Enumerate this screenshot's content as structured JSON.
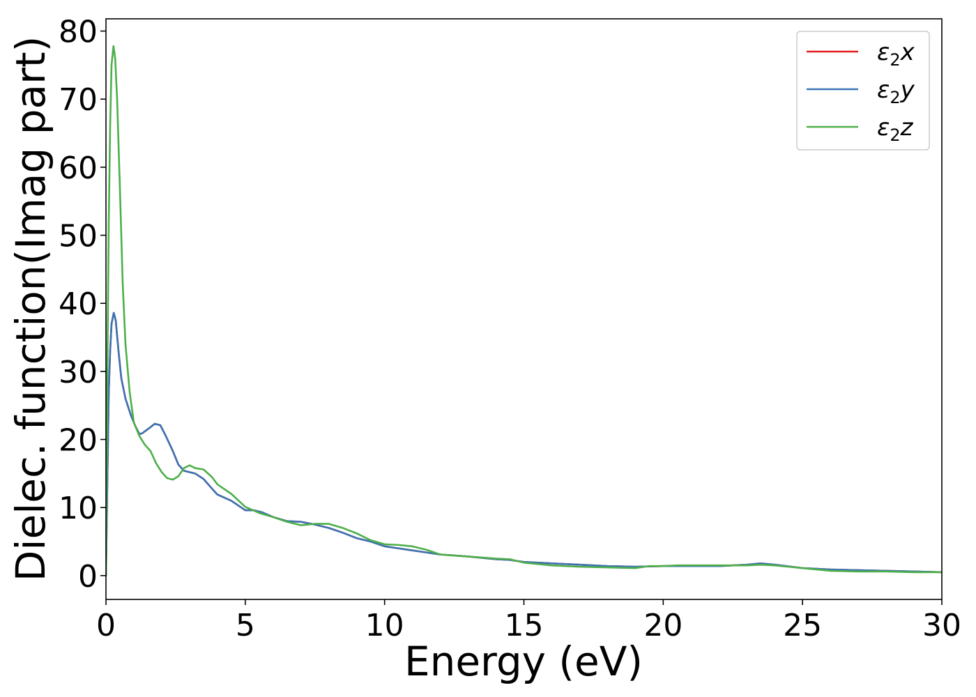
{
  "chart_data": {
    "type": "line",
    "xlabel": "Energy (eV)",
    "ylabel": "Dielec. function(Imag part)",
    "xlim": [
      0,
      30
    ],
    "ylim": [
      -3.5,
      81.8
    ],
    "xticks": [
      0,
      5,
      10,
      15,
      20,
      25,
      30
    ],
    "yticks": [
      0,
      10,
      20,
      30,
      40,
      50,
      60,
      70,
      80
    ],
    "grid": false,
    "legend_position": "top-right",
    "series": [
      {
        "name": "ε₂x",
        "legend_base": "ε",
        "legend_sub": "2",
        "legend_suffix": "x",
        "color": "#e41a1c",
        "points": [
          [
            0,
            0
          ],
          [
            0.05,
            14
          ],
          [
            0.1,
            27
          ],
          [
            0.15,
            33
          ],
          [
            0.2,
            37
          ],
          [
            0.28,
            38.6
          ],
          [
            0.35,
            37.5
          ],
          [
            0.45,
            33
          ],
          [
            0.55,
            29
          ],
          [
            0.7,
            26
          ],
          [
            0.9,
            23.5
          ],
          [
            1.05,
            22
          ],
          [
            1.2,
            20.8
          ],
          [
            1.3,
            20.9
          ],
          [
            1.5,
            21.5
          ],
          [
            1.75,
            22.3
          ],
          [
            1.95,
            22.1
          ],
          [
            2.15,
            20.5
          ],
          [
            2.4,
            18.3
          ],
          [
            2.6,
            16.3
          ],
          [
            2.8,
            15.4
          ],
          [
            3.2,
            15.0
          ],
          [
            3.5,
            14.2
          ],
          [
            3.8,
            12.8
          ],
          [
            4.0,
            11.9
          ],
          [
            4.5,
            11.0
          ],
          [
            5.0,
            9.6
          ],
          [
            5.3,
            9.6
          ],
          [
            5.6,
            9.3
          ],
          [
            6.0,
            8.6
          ],
          [
            6.5,
            8.0
          ],
          [
            7.0,
            7.9
          ],
          [
            7.5,
            7.5
          ],
          [
            8.0,
            7.0
          ],
          [
            8.5,
            6.3
          ],
          [
            9.0,
            5.5
          ],
          [
            9.5,
            5.0
          ],
          [
            10.0,
            4.3
          ],
          [
            10.5,
            4.0
          ],
          [
            11.0,
            3.7
          ],
          [
            11.5,
            3.4
          ],
          [
            12.0,
            3.1
          ],
          [
            13.0,
            2.8
          ],
          [
            14.0,
            2.4
          ],
          [
            14.5,
            2.3
          ],
          [
            15.0,
            2.0
          ],
          [
            16.0,
            1.8
          ],
          [
            17.0,
            1.6
          ],
          [
            18.0,
            1.4
          ],
          [
            19.0,
            1.3
          ],
          [
            20.0,
            1.4
          ],
          [
            21.0,
            1.4
          ],
          [
            22.0,
            1.4
          ],
          [
            23.0,
            1.6
          ],
          [
            23.5,
            1.8
          ],
          [
            24.0,
            1.6
          ],
          [
            25.0,
            1.1
          ],
          [
            26.0,
            0.9
          ],
          [
            27.0,
            0.8
          ],
          [
            28.0,
            0.7
          ],
          [
            29.0,
            0.6
          ],
          [
            30.0,
            0.5
          ]
        ]
      },
      {
        "name": "ε₂y",
        "legend_base": "ε",
        "legend_sub": "2",
        "legend_suffix": "y",
        "color": "#3a74b5",
        "points": [
          [
            0,
            0
          ],
          [
            0.05,
            14
          ],
          [
            0.1,
            27
          ],
          [
            0.15,
            33
          ],
          [
            0.2,
            37
          ],
          [
            0.28,
            38.6
          ],
          [
            0.35,
            37.5
          ],
          [
            0.45,
            33
          ],
          [
            0.55,
            29
          ],
          [
            0.7,
            26
          ],
          [
            0.9,
            23.5
          ],
          [
            1.05,
            22
          ],
          [
            1.2,
            20.8
          ],
          [
            1.3,
            20.9
          ],
          [
            1.5,
            21.5
          ],
          [
            1.75,
            22.3
          ],
          [
            1.95,
            22.1
          ],
          [
            2.15,
            20.5
          ],
          [
            2.4,
            18.3
          ],
          [
            2.6,
            16.3
          ],
          [
            2.8,
            15.4
          ],
          [
            3.2,
            15.0
          ],
          [
            3.5,
            14.2
          ],
          [
            3.8,
            12.8
          ],
          [
            4.0,
            11.9
          ],
          [
            4.5,
            11.0
          ],
          [
            5.0,
            9.6
          ],
          [
            5.3,
            9.6
          ],
          [
            5.6,
            9.3
          ],
          [
            6.0,
            8.6
          ],
          [
            6.5,
            8.0
          ],
          [
            7.0,
            7.9
          ],
          [
            7.5,
            7.5
          ],
          [
            8.0,
            7.0
          ],
          [
            8.5,
            6.3
          ],
          [
            9.0,
            5.5
          ],
          [
            9.5,
            5.0
          ],
          [
            10.0,
            4.3
          ],
          [
            10.5,
            4.0
          ],
          [
            11.0,
            3.7
          ],
          [
            11.5,
            3.4
          ],
          [
            12.0,
            3.1
          ],
          [
            13.0,
            2.8
          ],
          [
            14.0,
            2.4
          ],
          [
            14.5,
            2.3
          ],
          [
            15.0,
            2.0
          ],
          [
            16.0,
            1.8
          ],
          [
            17.0,
            1.6
          ],
          [
            18.0,
            1.4
          ],
          [
            19.0,
            1.3
          ],
          [
            20.0,
            1.4
          ],
          [
            21.0,
            1.4
          ],
          [
            22.0,
            1.4
          ],
          [
            23.0,
            1.6
          ],
          [
            23.5,
            1.8
          ],
          [
            24.0,
            1.6
          ],
          [
            25.0,
            1.1
          ],
          [
            26.0,
            0.9
          ],
          [
            27.0,
            0.8
          ],
          [
            28.0,
            0.7
          ],
          [
            29.0,
            0.6
          ],
          [
            30.0,
            0.5
          ]
        ]
      },
      {
        "name": "ε₂z",
        "legend_base": "ε",
        "legend_sub": "2",
        "legend_suffix": "z",
        "color": "#4daf4a",
        "points": [
          [
            0,
            0
          ],
          [
            0.05,
            30
          ],
          [
            0.1,
            52
          ],
          [
            0.15,
            66
          ],
          [
            0.2,
            75
          ],
          [
            0.27,
            77.8
          ],
          [
            0.33,
            76
          ],
          [
            0.4,
            70
          ],
          [
            0.5,
            57
          ],
          [
            0.6,
            43
          ],
          [
            0.7,
            34
          ],
          [
            0.85,
            27
          ],
          [
            1.0,
            22.5
          ],
          [
            1.2,
            20.5
          ],
          [
            1.4,
            19.2
          ],
          [
            1.6,
            18.3
          ],
          [
            1.8,
            16.5
          ],
          [
            2.0,
            15.2
          ],
          [
            2.2,
            14.3
          ],
          [
            2.4,
            14.1
          ],
          [
            2.6,
            14.6
          ],
          [
            2.8,
            15.8
          ],
          [
            3.0,
            16.2
          ],
          [
            3.2,
            15.8
          ],
          [
            3.5,
            15.6
          ],
          [
            3.8,
            14.5
          ],
          [
            4.0,
            13.4
          ],
          [
            4.5,
            12.0
          ],
          [
            5.0,
            10.1
          ],
          [
            5.5,
            9.2
          ],
          [
            6.0,
            8.6
          ],
          [
            6.5,
            7.9
          ],
          [
            7.0,
            7.4
          ],
          [
            7.5,
            7.6
          ],
          [
            8.0,
            7.6
          ],
          [
            8.5,
            7.0
          ],
          [
            9.0,
            6.2
          ],
          [
            9.5,
            5.2
          ],
          [
            10.0,
            4.6
          ],
          [
            10.5,
            4.5
          ],
          [
            11.0,
            4.3
          ],
          [
            11.5,
            3.8
          ],
          [
            12.0,
            3.1
          ],
          [
            13.0,
            2.8
          ],
          [
            14.0,
            2.5
          ],
          [
            14.5,
            2.4
          ],
          [
            15.0,
            1.9
          ],
          [
            16.0,
            1.5
          ],
          [
            17.0,
            1.3
          ],
          [
            18.0,
            1.2
          ],
          [
            19.0,
            1.1
          ],
          [
            19.5,
            1.4
          ],
          [
            20.0,
            1.4
          ],
          [
            20.5,
            1.5
          ],
          [
            21.0,
            1.5
          ],
          [
            22.0,
            1.5
          ],
          [
            23.0,
            1.5
          ],
          [
            23.5,
            1.6
          ],
          [
            24.0,
            1.5
          ],
          [
            25.0,
            1.1
          ],
          [
            26.0,
            0.7
          ],
          [
            27.0,
            0.6
          ],
          [
            28.0,
            0.6
          ],
          [
            29.0,
            0.5
          ],
          [
            30.0,
            0.5
          ]
        ]
      }
    ]
  }
}
